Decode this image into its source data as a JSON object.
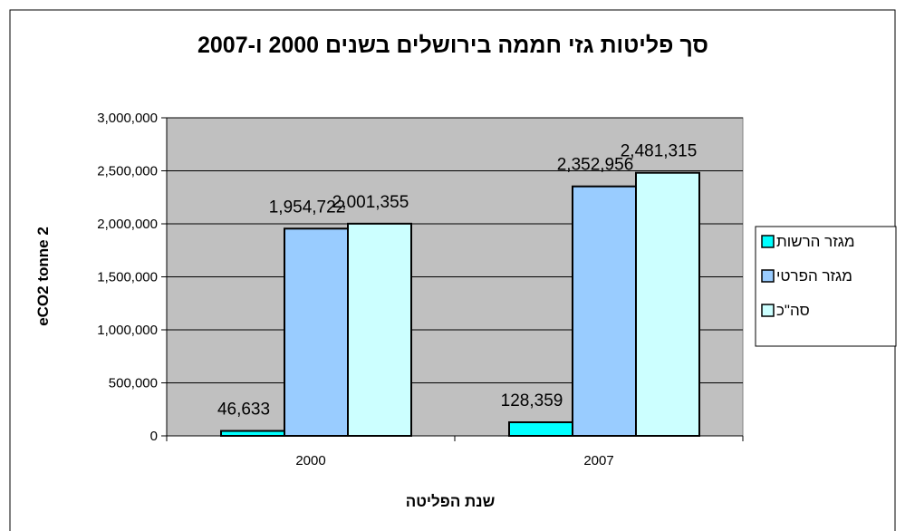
{
  "chart_data": {
    "type": "bar",
    "title": "סך פליטות גזי חממה בירושלים בשנים 2000 ו-2007",
    "xlabel": "שנת הפליטה",
    "ylabel": "eCO2 tonne 2",
    "categories": [
      "2000",
      "2007"
    ],
    "series": [
      {
        "name": "מגזר הרשות",
        "values": [
          46633,
          128359
        ],
        "labels": [
          "46,633",
          "128,359"
        ],
        "color": "#00FFFF"
      },
      {
        "name": "מגזר הפרטי",
        "values": [
          1954722,
          2352956
        ],
        "labels": [
          "1,954,722",
          "2,352,956"
        ],
        "color": "#99CCFF"
      },
      {
        "name": "סה\"כ",
        "values": [
          2001355,
          2481315
        ],
        "labels": [
          "2,001,355",
          "2,481,315"
        ],
        "color": "#CCFFFF"
      }
    ],
    "ylim": [
      0,
      3000000
    ],
    "yticks": [
      0,
      500000,
      1000000,
      1500000,
      2000000,
      2500000,
      3000000
    ],
    "ytick_labels": [
      "0",
      "500,000",
      "1,000,000",
      "1,500,000",
      "2,000,000",
      "2,500,000",
      "3,000,000"
    ],
    "grid": true,
    "legend_position": "right",
    "plot_background": "#C0C0C0"
  }
}
